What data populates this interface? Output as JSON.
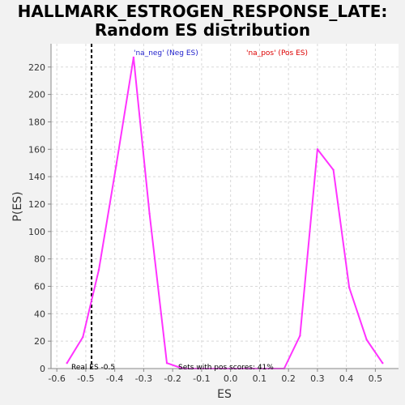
{
  "title_line1": "HALLMARK_ESTROGEN_RESPONSE_LATE:",
  "title_line2": "Random ES distribution",
  "chart_data": {
    "type": "line",
    "xlabel": "ES",
    "ylabel": "P(ES)",
    "xlim": [
      -0.62,
      0.58
    ],
    "ylim": [
      0,
      237
    ],
    "xticks": [
      -0.6,
      -0.5,
      -0.4,
      -0.3,
      -0.2,
      -0.1,
      0.0,
      0.1,
      0.2,
      0.3,
      0.4,
      0.5
    ],
    "xtick_labels": [
      "-0.6",
      "-0.5",
      "-0.4",
      "-0.3",
      "-0.2",
      "-0.1",
      "0.0",
      "0.1",
      "0.2",
      "0.3",
      "0.4",
      "0.5"
    ],
    "yticks": [
      0,
      20,
      40,
      60,
      80,
      100,
      120,
      140,
      160,
      180,
      200,
      220
    ],
    "grid": true,
    "series": [
      {
        "color": "#ff33ff",
        "x": [
          -0.565,
          -0.51,
          -0.455,
          -0.395,
          -0.335,
          -0.28,
          -0.22,
          -0.165,
          -0.11,
          -0.055,
          0.0,
          0.06,
          0.12,
          0.185,
          0.24,
          0.3,
          0.355,
          0.41,
          0.47,
          0.525
        ],
        "y": [
          4,
          23,
          72,
          148,
          227,
          113,
          4,
          0,
          0,
          0,
          0,
          0,
          0,
          0,
          24,
          160,
          145,
          59,
          21,
          4
        ]
      }
    ],
    "real_es": {
      "x": -0.48,
      "label": "Real ES -0.5"
    },
    "annotations": {
      "neg_label": "'na_neg' (Neg ES)",
      "pos_label": "'na_pos' (Pos ES)",
      "pos_scores": "Sets with pos scores: 41%"
    },
    "colors": {
      "neg": "#2222cc",
      "pos": "#dd0000",
      "plot_bg": "#ffffff",
      "page_bg": "#f2f2f2"
    }
  }
}
